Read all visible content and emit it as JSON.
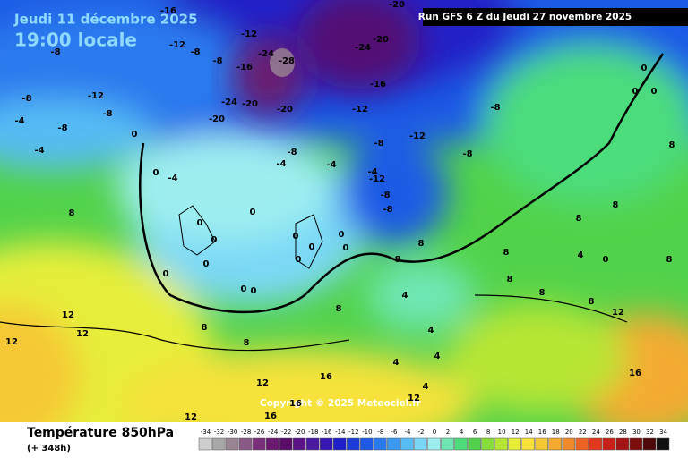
{
  "header": {
    "date": "Jeudi 11 décembre 2025",
    "time": "19:00 locale",
    "run": "Run GFS 6 Z du Jeudi 27 novembre 2025",
    "copyright": "Copyright © 2025 Meteociel.fr"
  },
  "legend": {
    "title": "Température 850hPa",
    "lead": "(+ 348h)",
    "values": [
      -34,
      -32,
      -30,
      -28,
      -26,
      -24,
      -22,
      -20,
      -18,
      -16,
      -14,
      -12,
      -10,
      -8,
      -6,
      -4,
      -2,
      0,
      2,
      4,
      6,
      8,
      10,
      12,
      14,
      16,
      18,
      20,
      22,
      24,
      26,
      28,
      30,
      32,
      34
    ],
    "colors": [
      "#cfcfcf",
      "#a8a8a8",
      "#9a8494",
      "#8a5a86",
      "#7a2f7a",
      "#6a1a6e",
      "#5a0e6a",
      "#5a1488",
      "#4a1aa0",
      "#3818b4",
      "#2020c8",
      "#1e3cd8",
      "#1e5ae6",
      "#2a7aee",
      "#3a9af2",
      "#56bcf4",
      "#7ad8f6",
      "#9eeef0",
      "#6ee6b4",
      "#4cdc7c",
      "#52d24a",
      "#86dc3a",
      "#b8e636",
      "#e6ee3a",
      "#f6e23a",
      "#f6c836",
      "#f4aa30",
      "#f08a2a",
      "#ec6424",
      "#e23a1e",
      "#c8201a",
      "#a41414",
      "#7e0e0e",
      "#4e0a0a",
      "#101010"
    ]
  },
  "map_labels": [
    -16,
    -8,
    -12,
    -8,
    -8,
    -12,
    -16,
    -24,
    -28,
    -20,
    -20,
    -24,
    -16,
    -24,
    -20,
    -20,
    -20,
    -12,
    -12,
    -8,
    -8,
    -8,
    -8,
    -4,
    -4,
    -4,
    -12,
    -8,
    -8,
    -12,
    -8,
    -8,
    -4,
    -8,
    -4,
    -4,
    0,
    0,
    0,
    0,
    0,
    0,
    0,
    0,
    0,
    0,
    0,
    0,
    0,
    0,
    0,
    0,
    0,
    0,
    8,
    8,
    8,
    8,
    8,
    8,
    8,
    8,
    8,
    8,
    8,
    8,
    12,
    12,
    12,
    12,
    12,
    12,
    12,
    16,
    16,
    16,
    16,
    4,
    4,
    4,
    4,
    4,
    4,
    8,
    8,
    -4
  ]
}
